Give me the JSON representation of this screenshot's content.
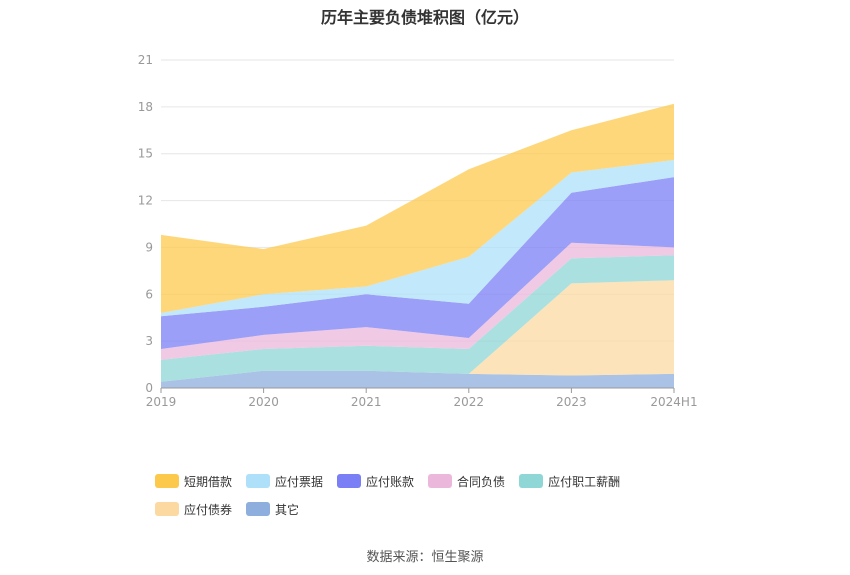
{
  "chart_data": {
    "type": "area",
    "stacked": true,
    "title": "历年主要负债堆积图（亿元）",
    "categories": [
      "2019",
      "2020",
      "2021",
      "2022",
      "2023",
      "2024H1"
    ],
    "ylim": [
      0,
      21
    ],
    "yticks": [
      "0",
      "3",
      "6",
      "9",
      "12",
      "15",
      "18",
      "21"
    ],
    "grid": true,
    "legend_position": "bottom",
    "series": [
      {
        "name": "其它",
        "color": "#8eaedd",
        "values": [
          0.4,
          1.1,
          1.1,
          0.9,
          0.8,
          0.9
        ]
      },
      {
        "name": "应付债券",
        "color": "#fcd9a1",
        "values": [
          0,
          0,
          0,
          0,
          5.9,
          6.0
        ]
      },
      {
        "name": "应付职工薪酬",
        "color": "#8fd6d6",
        "values": [
          1.4,
          1.4,
          1.6,
          1.6,
          1.6,
          1.6
        ]
      },
      {
        "name": "合同负债",
        "color": "#ebb8dc",
        "values": [
          0.7,
          0.9,
          1.2,
          0.7,
          1.0,
          0.5
        ]
      },
      {
        "name": "应付账款",
        "color": "#7b7ff5",
        "values": [
          2.1,
          1.8,
          2.1,
          2.2,
          3.2,
          4.5
        ]
      },
      {
        "name": "应付票据",
        "color": "#aee0f9",
        "values": [
          0.2,
          0.8,
          0.5,
          3.0,
          1.3,
          1.1
        ]
      },
      {
        "name": "短期借款",
        "color": "#fdc94d",
        "values": [
          5.0,
          2.9,
          3.9,
          5.6,
          2.7,
          3.6
        ]
      }
    ]
  },
  "legend_order": [
    "短期借款",
    "应付票据",
    "应付账款",
    "合同负债",
    "应付职工薪酬",
    "应付债券",
    "其它"
  ],
  "source": "数据来源：恒生聚源"
}
